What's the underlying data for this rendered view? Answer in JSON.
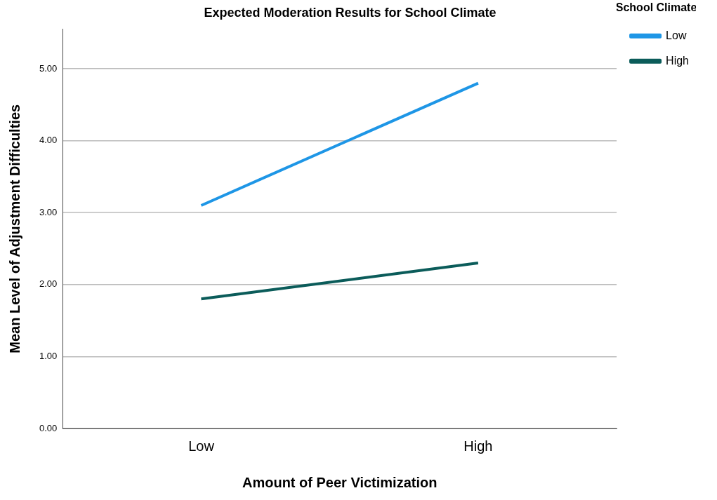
{
  "chart_data": {
    "type": "line",
    "title": "Expected Moderation Results for School Climate",
    "xlabel": "Amount of Peer Victimization",
    "ylabel": "Mean Level of Adjustment Difficulties",
    "legend_title": "School Climate",
    "categories": [
      "Low",
      "High"
    ],
    "series": [
      {
        "name": "Low",
        "color": "#1e96e6",
        "values": [
          3.1,
          4.8
        ]
      },
      {
        "name": "High",
        "color": "#0b5c5a",
        "values": [
          1.8,
          2.3
        ]
      }
    ],
    "ylim": [
      0,
      5.55
    ],
    "yticks": [
      {
        "value": 0,
        "label": "0.00"
      },
      {
        "value": 1,
        "label": "1.00"
      },
      {
        "value": 2,
        "label": "2.00"
      },
      {
        "value": 3,
        "label": "3.00"
      },
      {
        "value": 4,
        "label": "4.00"
      },
      {
        "value": 5,
        "label": "5.00"
      }
    ],
    "grid": "y",
    "legend": "top right",
    "marker": "none",
    "line_style": "solid"
  }
}
